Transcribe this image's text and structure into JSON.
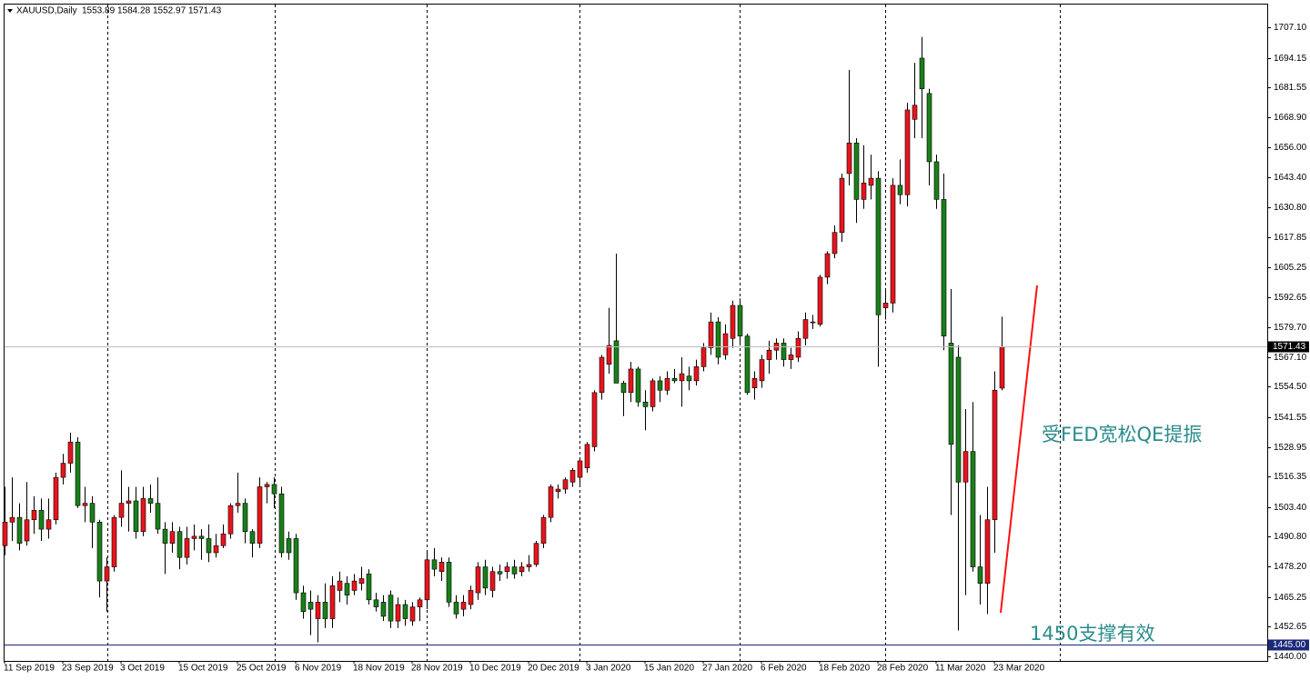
{
  "chart_data": {
    "type": "candlestick",
    "title": "XAUUSD,Daily",
    "up_color": "#e8141c",
    "down_color": "#1a7f1a",
    "ylim": [
      1438.07,
      1717.14
    ],
    "yticks": [
      {
        "value": 1707.1,
        "label": "1707.10"
      },
      {
        "value": 1694.15,
        "label": "1694.15"
      },
      {
        "value": 1681.55,
        "label": "1681.55"
      },
      {
        "value": 1668.9,
        "label": "1668.90"
      },
      {
        "value": 1656,
        "label": "1656.00"
      },
      {
        "value": 1643.4,
        "label": "1643.40"
      },
      {
        "value": 1630.8,
        "label": "1630.80"
      },
      {
        "value": 1617.85,
        "label": "1617.85"
      },
      {
        "value": 1605.25,
        "label": "1605.25"
      },
      {
        "value": 1592.65,
        "label": "1592.65"
      },
      {
        "value": 1579.7,
        "label": "1579.70"
      },
      {
        "value": 1567.1,
        "label": "1567.10"
      },
      {
        "value": 1554.5,
        "label": "1554.50"
      },
      {
        "value": 1541.55,
        "label": "1541.55"
      },
      {
        "value": 1528.95,
        "label": "1528.95"
      },
      {
        "value": 1516.35,
        "label": "1516.35"
      },
      {
        "value": 1503.4,
        "label": "1503.40"
      },
      {
        "value": 1490.8,
        "label": "1490.80"
      },
      {
        "value": 1478.2,
        "label": "1478.20"
      },
      {
        "value": 1465.25,
        "label": "1465.25"
      },
      {
        "value": 1452.65,
        "label": "1452.65"
      },
      {
        "value": 1440,
        "label": "1440.00"
      }
    ],
    "hline": {
      "value": 1445,
      "label": "1445.00"
    },
    "annotations": [
      "受FED宽松QE提振",
      "1450支撑有效"
    ],
    "categories": [
      "11 Sep 2019",
      null,
      null,
      null,
      null,
      null,
      null,
      null,
      "23 Sep 2019",
      null,
      null,
      null,
      null,
      null,
      null,
      null,
      "3 Oct 2019",
      null,
      null,
      null,
      null,
      null,
      null,
      null,
      "15 Oct 2019",
      null,
      null,
      null,
      null,
      null,
      null,
      null,
      "25 Oct 2019",
      null,
      null,
      null,
      null,
      null,
      null,
      null,
      "6 Nov 2019",
      null,
      null,
      null,
      null,
      null,
      null,
      null,
      "18 Nov 2019",
      null,
      null,
      null,
      null,
      null,
      null,
      null,
      "28 Nov 2019",
      null,
      null,
      null,
      null,
      null,
      null,
      null,
      "10 Dec 2019",
      null,
      null,
      null,
      null,
      null,
      null,
      null,
      "20 Dec 2019",
      null,
      null,
      null,
      null,
      null,
      null,
      null,
      "3 Jan 2020",
      null,
      null,
      null,
      null,
      null,
      null,
      null,
      "15 Jan 2020",
      null,
      null,
      null,
      null,
      null,
      null,
      null,
      "27 Jan 2020",
      null,
      null,
      null,
      null,
      null,
      null,
      null,
      "6 Feb 2020",
      null,
      null,
      null,
      null,
      null,
      null,
      null,
      "18 Feb 2020",
      null,
      null,
      null,
      null,
      null,
      null,
      null,
      "28 Feb 2020",
      null,
      null,
      null,
      null,
      null,
      null,
      null,
      "11 Mar 2020",
      null,
      null,
      null,
      null,
      null,
      null,
      null,
      "23 Mar 2020",
      null
    ],
    "ohlc": [
      [
        1487,
        1512,
        1483,
        1497
      ],
      [
        1497,
        1516,
        1489,
        1499
      ],
      [
        1499,
        1505,
        1485,
        1488
      ],
      [
        1489,
        1514,
        1487,
        1498
      ],
      [
        1498,
        1508,
        1492,
        1502
      ],
      [
        1502,
        1507,
        1489,
        1494
      ],
      [
        1494,
        1507,
        1490,
        1498
      ],
      [
        1498,
        1518,
        1496,
        1516
      ],
      [
        1516,
        1526,
        1513,
        1522
      ],
      [
        1522,
        1535,
        1518,
        1531
      ],
      [
        1531,
        1533,
        1503,
        1504
      ],
      [
        1504,
        1512,
        1497,
        1505
      ],
      [
        1505,
        1508,
        1486,
        1497
      ],
      [
        1497,
        1498,
        1465,
        1472
      ],
      [
        1472,
        1482,
        1459,
        1478
      ],
      [
        1478,
        1500,
        1476,
        1499
      ],
      [
        1499,
        1519,
        1495,
        1505
      ],
      [
        1505,
        1512,
        1493,
        1506
      ],
      [
        1506,
        1512,
        1490,
        1493
      ],
      [
        1493,
        1512,
        1491,
        1507
      ],
      [
        1507,
        1513,
        1501,
        1505
      ],
      [
        1505,
        1516,
        1492,
        1494
      ],
      [
        1494,
        1497,
        1475,
        1488
      ],
      [
        1488,
        1497,
        1484,
        1493
      ],
      [
        1493,
        1495,
        1477,
        1482
      ],
      [
        1482,
        1495,
        1479,
        1490
      ],
      [
        1490,
        1496,
        1485,
        1491
      ],
      [
        1491,
        1494,
        1481,
        1490
      ],
      [
        1490,
        1496,
        1480,
        1484
      ],
      [
        1484,
        1492,
        1482,
        1487
      ],
      [
        1487,
        1496,
        1486,
        1492
      ],
      [
        1492,
        1505,
        1490,
        1504
      ],
      [
        1504,
        1518,
        1501,
        1505
      ],
      [
        1505,
        1507,
        1488,
        1493
      ],
      [
        1493,
        1494,
        1482,
        1488
      ],
      [
        1488,
        1516,
        1486,
        1512
      ],
      [
        1512,
        1514,
        1505,
        1513
      ],
      [
        1513,
        1516,
        1503,
        1509
      ],
      [
        1509,
        1512,
        1482,
        1484
      ],
      [
        1490,
        1493,
        1481,
        1484
      ],
      [
        1490,
        1492,
        1464,
        1467
      ],
      [
        1467,
        1470,
        1456,
        1459
      ],
      [
        1463,
        1468,
        1449,
        1460
      ],
      [
        1456,
        1466,
        1446,
        1463
      ],
      [
        1463,
        1471,
        1452,
        1456
      ],
      [
        1456,
        1474,
        1452,
        1470
      ],
      [
        1468,
        1476,
        1463,
        1472
      ],
      [
        1471,
        1474,
        1462,
        1466
      ],
      [
        1468,
        1475,
        1466,
        1472
      ],
      [
        1471,
        1478,
        1468,
        1473
      ],
      [
        1475,
        1477,
        1462,
        1464
      ],
      [
        1464,
        1467,
        1459,
        1461
      ],
      [
        1463,
        1466,
        1455,
        1457
      ],
      [
        1466,
        1468,
        1452,
        1455
      ],
      [
        1455,
        1465,
        1452,
        1462
      ],
      [
        1462,
        1464,
        1453,
        1456
      ],
      [
        1455,
        1463,
        1453,
        1461
      ],
      [
        1461,
        1465,
        1455,
        1464
      ],
      [
        1464,
        1484,
        1460,
        1481
      ],
      [
        1481,
        1486,
        1474,
        1477
      ],
      [
        1476,
        1482,
        1472,
        1480
      ],
      [
        1480,
        1482,
        1461,
        1463
      ],
      [
        1463,
        1466,
        1456,
        1458
      ],
      [
        1460,
        1466,
        1457,
        1463
      ],
      [
        1462,
        1470,
        1460,
        1468
      ],
      [
        1467,
        1480,
        1464,
        1478
      ],
      [
        1478,
        1481,
        1466,
        1469
      ],
      [
        1468,
        1478,
        1465,
        1476
      ],
      [
        1476,
        1479,
        1472,
        1475
      ],
      [
        1476,
        1480,
        1473,
        1478
      ],
      [
        1478,
        1481,
        1473,
        1475
      ],
      [
        1476,
        1480,
        1474,
        1478
      ],
      [
        1478,
        1483,
        1476,
        1479
      ],
      [
        1479,
        1489,
        1478,
        1488
      ],
      [
        1488,
        1500,
        1486,
        1499
      ],
      [
        1499,
        1513,
        1497,
        1512
      ],
      [
        1510,
        1513,
        1507,
        1511
      ],
      [
        1511,
        1516,
        1509,
        1515
      ],
      [
        1514,
        1520,
        1512,
        1519
      ],
      [
        1516,
        1524,
        1513,
        1523
      ],
      [
        1520,
        1531,
        1518,
        1530
      ],
      [
        1529,
        1553,
        1527,
        1552
      ],
      [
        1552,
        1568,
        1549,
        1567
      ],
      [
        1564,
        1588,
        1560,
        1572
      ],
      [
        1574,
        1611,
        1556,
        1556
      ],
      [
        1556,
        1557,
        1542,
        1552
      ],
      [
        1552,
        1565,
        1548,
        1562
      ],
      [
        1562,
        1563,
        1546,
        1548
      ],
      [
        1548,
        1553,
        1536,
        1546
      ],
      [
        1546,
        1558,
        1544,
        1557
      ],
      [
        1557,
        1559,
        1548,
        1553
      ],
      [
        1553,
        1561,
        1551,
        1558
      ],
      [
        1558,
        1562,
        1556,
        1557
      ],
      [
        1557,
        1567,
        1546,
        1560
      ],
      [
        1559,
        1563,
        1553,
        1557
      ],
      [
        1557,
        1566,
        1555,
        1563
      ],
      [
        1563,
        1573,
        1561,
        1571
      ],
      [
        1571,
        1586,
        1568,
        1582
      ],
      [
        1582,
        1584,
        1564,
        1567
      ],
      [
        1568,
        1581,
        1566,
        1577
      ],
      [
        1575,
        1591,
        1571,
        1589
      ],
      [
        1589,
        1592,
        1573,
        1576
      ],
      [
        1576,
        1577,
        1551,
        1552
      ],
      [
        1554,
        1561,
        1549,
        1558
      ],
      [
        1557,
        1568,
        1554,
        1566
      ],
      [
        1566,
        1574,
        1560,
        1570
      ],
      [
        1570,
        1575,
        1566,
        1573
      ],
      [
        1573,
        1575,
        1563,
        1566
      ],
      [
        1566,
        1571,
        1562,
        1568
      ],
      [
        1567,
        1578,
        1565,
        1575
      ],
      [
        1575,
        1586,
        1572,
        1583
      ],
      [
        1582,
        1585,
        1579,
        1582
      ],
      [
        1581,
        1602,
        1580,
        1601
      ],
      [
        1601,
        1612,
        1598,
        1611
      ],
      [
        1611,
        1623,
        1609,
        1620
      ],
      [
        1620,
        1645,
        1616,
        1643
      ],
      [
        1645,
        1689,
        1640,
        1658
      ],
      [
        1658,
        1660,
        1624,
        1634
      ],
      [
        1634,
        1657,
        1630,
        1641
      ],
      [
        1640,
        1653,
        1634,
        1643
      ],
      [
        1643,
        1646,
        1563,
        1585
      ],
      [
        1588,
        1596,
        1583,
        1590
      ],
      [
        1590,
        1643,
        1586,
        1640
      ],
      [
        1640,
        1651,
        1632,
        1636
      ],
      [
        1636,
        1675,
        1631,
        1672
      ],
      [
        1668,
        1692,
        1660,
        1674
      ],
      [
        1694,
        1703,
        1660,
        1681
      ],
      [
        1679,
        1681,
        1640,
        1650
      ],
      [
        1650,
        1653,
        1630,
        1634
      ],
      [
        1634,
        1645,
        1570,
        1576
      ],
      [
        1573,
        1596,
        1500,
        1530
      ],
      [
        1567,
        1572,
        1451,
        1514
      ],
      [
        1514,
        1545,
        1466,
        1527
      ],
      [
        1527,
        1548,
        1476,
        1478
      ],
      [
        1478,
        1500,
        1462,
        1471
      ],
      [
        1471,
        1512,
        1458,
        1498
      ],
      [
        1498,
        1561,
        1484,
        1553
      ],
      [
        1553.89,
        1584.28,
        1552.97,
        1571.43
      ]
    ]
  }
}
